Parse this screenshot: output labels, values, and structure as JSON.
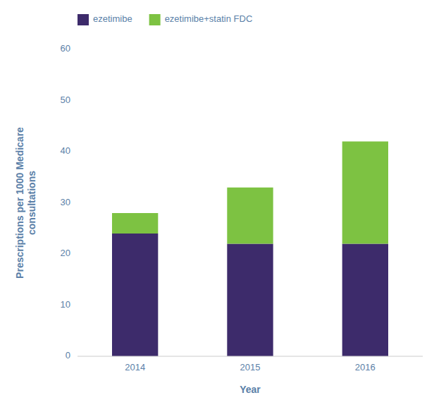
{
  "chart_data": {
    "type": "bar",
    "stacked": true,
    "categories": [
      "2014",
      "2015",
      "2016"
    ],
    "series": [
      {
        "name": "ezetimibe",
        "color": "#3d2b6b",
        "values": [
          24,
          22,
          22
        ]
      },
      {
        "name": "ezetimibe+statin FDC",
        "color": "#7dc242",
        "values": [
          4,
          11,
          20
        ]
      }
    ],
    "xlabel": "Year",
    "ylabel": "Prescriptions per 1000 Medicare\nconsultations",
    "ylim": [
      0,
      60
    ],
    "yticks": [
      0,
      10,
      20,
      30,
      40,
      50,
      60
    ],
    "grid": false,
    "legend": "upper left"
  }
}
